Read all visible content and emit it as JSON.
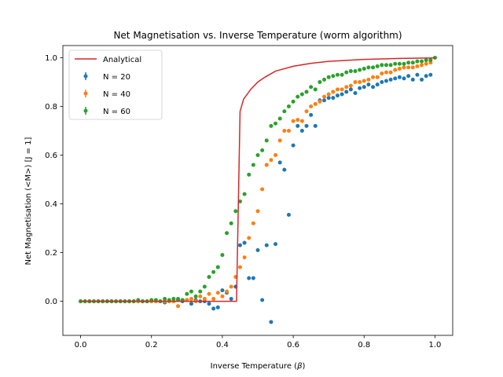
{
  "chart_data": {
    "type": "scatter",
    "title": "Net Magnetisation vs. Inverse Temperature (worm algorithm)",
    "xlabel": "Inverse Temperature (β)",
    "ylabel": "Net Magnetisation (<M>) [J = 1]",
    "xlim": [
      -0.05,
      1.05
    ],
    "ylim": [
      -0.14,
      1.05
    ],
    "xticks": [
      0.0,
      0.2,
      0.4,
      0.6,
      0.8,
      1.0
    ],
    "yticks": [
      0.0,
      0.2,
      0.4,
      0.6,
      0.8,
      1.0
    ],
    "xtick_labels": [
      "0.0",
      "0.2",
      "0.4",
      "0.6",
      "0.8",
      "1.0"
    ],
    "ytick_labels": [
      "0.0",
      "0.2",
      "0.4",
      "0.6",
      "0.8",
      "1.0"
    ],
    "grid": false,
    "legend_position": "upper left",
    "series": [
      {
        "name": "Analytical",
        "kind": "line",
        "color": "#d62728",
        "x": [
          0.0,
          0.1,
          0.2,
          0.3,
          0.4,
          0.43,
          0.44,
          0.45,
          0.46,
          0.48,
          0.5,
          0.52,
          0.55,
          0.6,
          0.65,
          0.7,
          0.8,
          0.9,
          1.0
        ],
        "y": [
          0.0,
          0.0,
          0.0,
          0.0,
          0.0,
          0.0,
          0.0,
          0.78,
          0.83,
          0.87,
          0.9,
          0.92,
          0.945,
          0.965,
          0.977,
          0.985,
          0.993,
          0.997,
          0.999
        ]
      },
      {
        "name": "N = 20",
        "kind": "points",
        "color": "#1f77b4",
        "x": [
          0.0,
          0.0125,
          0.025,
          0.0375,
          0.05,
          0.0625,
          0.075,
          0.0875,
          0.1,
          0.1125,
          0.125,
          0.1375,
          0.15,
          0.1625,
          0.175,
          0.1875,
          0.2,
          0.2125,
          0.225,
          0.2375,
          0.25,
          0.2625,
          0.275,
          0.2875,
          0.3,
          0.3125,
          0.325,
          0.3375,
          0.35,
          0.3625,
          0.375,
          0.3875,
          0.4,
          0.4125,
          0.425,
          0.4375,
          0.45,
          0.4625,
          0.475,
          0.4875,
          0.5,
          0.5125,
          0.525,
          0.5375,
          0.55,
          0.5625,
          0.575,
          0.5875,
          0.6,
          0.6125,
          0.625,
          0.6375,
          0.65,
          0.6625,
          0.675,
          0.6875,
          0.7,
          0.7125,
          0.725,
          0.7375,
          0.75,
          0.7625,
          0.775,
          0.7875,
          0.8,
          0.8125,
          0.825,
          0.8375,
          0.85,
          0.8625,
          0.875,
          0.8875,
          0.9,
          0.9125,
          0.925,
          0.9375,
          0.95,
          0.9625,
          0.975,
          0.9875
        ],
        "y": [
          0.0,
          0.0,
          0.0,
          0.0,
          0.0,
          0.0,
          0.0,
          0.0,
          0.0,
          0.0,
          0.0,
          0.0,
          0.0,
          0.0,
          0.0,
          0.0,
          0.0,
          0.0,
          0.0,
          -0.005,
          0.0,
          0.0,
          0.005,
          0.0,
          0.005,
          -0.01,
          0.005,
          0.0,
          0.0,
          -0.01,
          -0.03,
          -0.025,
          0.045,
          0.035,
          0.01,
          0.06,
          0.23,
          0.24,
          0.095,
          0.095,
          0.21,
          0.005,
          0.23,
          -0.085,
          0.235,
          0.57,
          0.54,
          0.355,
          0.64,
          0.72,
          0.7,
          0.72,
          0.765,
          0.72,
          0.825,
          0.825,
          0.835,
          0.835,
          0.845,
          0.85,
          0.86,
          0.87,
          0.855,
          0.875,
          0.88,
          0.89,
          0.88,
          0.89,
          0.9,
          0.905,
          0.91,
          0.915,
          0.92,
          0.915,
          0.925,
          0.91,
          0.93,
          0.91,
          0.925,
          0.93
        ]
      },
      {
        "name": "N = 40",
        "kind": "points",
        "color": "#ff7f0e",
        "x": [
          0.0,
          0.0125,
          0.025,
          0.0375,
          0.05,
          0.0625,
          0.075,
          0.0875,
          0.1,
          0.1125,
          0.125,
          0.1375,
          0.15,
          0.1625,
          0.175,
          0.1875,
          0.2,
          0.2125,
          0.225,
          0.2375,
          0.25,
          0.2625,
          0.275,
          0.2875,
          0.3,
          0.3125,
          0.325,
          0.3375,
          0.35,
          0.3625,
          0.375,
          0.3875,
          0.4,
          0.4125,
          0.425,
          0.4375,
          0.45,
          0.4625,
          0.475,
          0.4875,
          0.5,
          0.5125,
          0.525,
          0.5375,
          0.55,
          0.5625,
          0.575,
          0.5875,
          0.6,
          0.6125,
          0.625,
          0.6375,
          0.65,
          0.6625,
          0.675,
          0.6875,
          0.7,
          0.7125,
          0.725,
          0.7375,
          0.75,
          0.7625,
          0.775,
          0.7875,
          0.8,
          0.8125,
          0.825,
          0.8375,
          0.85,
          0.8625,
          0.875,
          0.8875,
          0.9,
          0.9125,
          0.925,
          0.9375,
          0.95,
          0.9625,
          0.975,
          0.9875
        ],
        "y": [
          0.0,
          0.0,
          0.0,
          0.0,
          0.0,
          0.0,
          0.0,
          0.0,
          0.0,
          0.0,
          0.0,
          0.0,
          0.0,
          0.0,
          0.0,
          0.0,
          0.0,
          0.0,
          0.0,
          0.0,
          0.0,
          0.0,
          -0.02,
          0.005,
          0.005,
          0.01,
          0.0,
          0.02,
          0.01,
          0.03,
          0.01,
          0.035,
          0.02,
          0.04,
          0.06,
          0.1,
          0.14,
          0.18,
          0.26,
          0.32,
          0.37,
          0.46,
          0.56,
          0.58,
          0.6,
          0.66,
          0.7,
          0.7,
          0.74,
          0.745,
          0.74,
          0.78,
          0.8,
          0.81,
          0.82,
          0.84,
          0.85,
          0.86,
          0.87,
          0.87,
          0.88,
          0.885,
          0.9,
          0.9,
          0.905,
          0.91,
          0.92,
          0.92,
          0.935,
          0.94,
          0.94,
          0.95,
          0.955,
          0.96,
          0.96,
          0.96,
          0.965,
          0.97,
          0.975,
          0.98
        ]
      },
      {
        "name": "N = 60",
        "kind": "points",
        "color": "#2ca02c",
        "x": [
          0.0,
          0.0125,
          0.025,
          0.0375,
          0.05,
          0.0625,
          0.075,
          0.0875,
          0.1,
          0.1125,
          0.125,
          0.1375,
          0.15,
          0.1625,
          0.175,
          0.1875,
          0.2,
          0.2125,
          0.225,
          0.2375,
          0.25,
          0.2625,
          0.275,
          0.2875,
          0.3,
          0.3125,
          0.325,
          0.3375,
          0.35,
          0.3625,
          0.375,
          0.3875,
          0.4,
          0.4125,
          0.425,
          0.4375,
          0.45,
          0.4625,
          0.475,
          0.4875,
          0.5,
          0.5125,
          0.525,
          0.5375,
          0.55,
          0.5625,
          0.575,
          0.5875,
          0.6,
          0.6125,
          0.625,
          0.6375,
          0.65,
          0.6625,
          0.675,
          0.6875,
          0.7,
          0.7125,
          0.725,
          0.7375,
          0.75,
          0.7625,
          0.775,
          0.7875,
          0.8,
          0.8125,
          0.825,
          0.8375,
          0.85,
          0.8625,
          0.875,
          0.8875,
          0.9,
          0.9125,
          0.925,
          0.9375,
          0.95,
          0.9625,
          0.975,
          0.9875,
          1.0
        ],
        "y": [
          0.0,
          0.0,
          0.0,
          0.0,
          0.0,
          0.0,
          0.0,
          0.0,
          0.0,
          0.0,
          0.0,
          0.0,
          0.0,
          0.005,
          0.0,
          0.0,
          0.005,
          0.005,
          0.0,
          0.01,
          0.005,
          0.01,
          0.01,
          0.005,
          0.03,
          0.04,
          0.02,
          0.04,
          0.06,
          0.1,
          0.12,
          0.14,
          0.19,
          0.28,
          0.32,
          0.37,
          0.41,
          0.44,
          0.52,
          0.56,
          0.6,
          0.62,
          0.66,
          0.72,
          0.73,
          0.75,
          0.78,
          0.8,
          0.82,
          0.84,
          0.85,
          0.86,
          0.88,
          0.87,
          0.9,
          0.91,
          0.92,
          0.925,
          0.93,
          0.93,
          0.94,
          0.945,
          0.945,
          0.95,
          0.955,
          0.96,
          0.96,
          0.965,
          0.97,
          0.97,
          0.97,
          0.975,
          0.975,
          0.975,
          0.98,
          0.98,
          0.985,
          0.985,
          0.99,
          0.99,
          1.0
        ]
      }
    ]
  }
}
